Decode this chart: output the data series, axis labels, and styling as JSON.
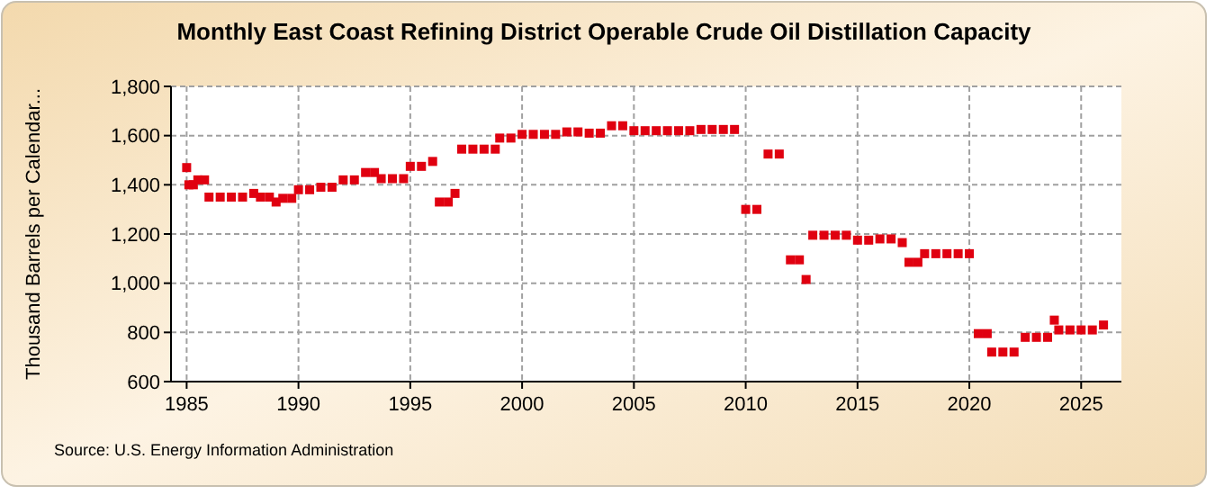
{
  "chart_data": {
    "type": "scatter",
    "title": "Monthly East Coast Refining District Operable Crude Oil Distillation Capacity",
    "ylabel": "Thousand Barrels per Calendar...",
    "annotations": [
      "Source: U.S. Energy Information Administration"
    ],
    "xlim": [
      1984.3,
      2026.8
    ],
    "xticks": [
      1985,
      1990,
      1995,
      2000,
      2005,
      2010,
      2015,
      2020,
      2025
    ],
    "ylim": [
      600,
      1800
    ],
    "yticks": [
      {
        "value": 600,
        "label": "600"
      },
      {
        "value": 800,
        "label": "800"
      },
      {
        "value": 1000,
        "label": "1,000"
      },
      {
        "value": 1200,
        "label": "1,200"
      },
      {
        "value": 1400,
        "label": "1,400"
      },
      {
        "value": 1600,
        "label": "1,600"
      },
      {
        "value": 1800,
        "label": "1,800"
      }
    ],
    "grid": true,
    "marker": "square",
    "series": [
      {
        "color": "#e00010",
        "x": [
          1985.0,
          1985.1,
          1985.3,
          1985.5,
          1985.8,
          1986.0,
          1986.5,
          1987.0,
          1987.5,
          1988.0,
          1988.3,
          1988.7,
          1989.0,
          1989.3,
          1989.7,
          1990.0,
          1990.5,
          1991.0,
          1991.5,
          1992.0,
          1992.5,
          1993.0,
          1993.4,
          1993.7,
          1994.2,
          1994.7,
          1995.0,
          1995.5,
          1996.0,
          1996.3,
          1996.7,
          1997.0,
          1997.3,
          1997.8,
          1998.3,
          1998.8,
          1999.0,
          1999.5,
          2000.0,
          2000.5,
          2001.0,
          2001.5,
          2002.0,
          2002.5,
          2003.0,
          2003.5,
          2004.0,
          2004.5,
          2005.0,
          2005.5,
          2006.0,
          2006.5,
          2007.0,
          2007.5,
          2008.0,
          2008.5,
          2009.0,
          2009.5,
          2010.0,
          2010.5,
          2011.0,
          2011.5,
          2012.0,
          2012.4,
          2012.7,
          2013.0,
          2013.5,
          2014.0,
          2014.5,
          2015.0,
          2015.5,
          2016.0,
          2016.5,
          2017.0,
          2017.3,
          2017.7,
          2018.0,
          2018.5,
          2019.0,
          2019.5,
          2020.0,
          2020.4,
          2020.8,
          2021.0,
          2021.5,
          2022.0,
          2022.5,
          2023.0,
          2023.5,
          2023.8,
          2024.0,
          2024.5,
          2025.0,
          2025.5,
          2026.0
        ],
        "values": [
          1470,
          1400,
          1400,
          1420,
          1420,
          1350,
          1350,
          1350,
          1350,
          1365,
          1350,
          1350,
          1330,
          1345,
          1345,
          1380,
          1380,
          1390,
          1390,
          1420,
          1420,
          1450,
          1450,
          1425,
          1425,
          1425,
          1475,
          1475,
          1495,
          1330,
          1330,
          1365,
          1545,
          1545,
          1545,
          1545,
          1590,
          1590,
          1605,
          1605,
          1605,
          1605,
          1615,
          1615,
          1610,
          1610,
          1640,
          1640,
          1620,
          1620,
          1620,
          1620,
          1620,
          1620,
          1625,
          1625,
          1625,
          1625,
          1300,
          1300,
          1525,
          1525,
          1095,
          1095,
          1015,
          1195,
          1195,
          1195,
          1195,
          1175,
          1175,
          1180,
          1180,
          1165,
          1085,
          1085,
          1120,
          1120,
          1120,
          1120,
          1120,
          795,
          795,
          720,
          720,
          720,
          780,
          780,
          780,
          850,
          810,
          810,
          810,
          810,
          830
        ]
      }
    ]
  }
}
